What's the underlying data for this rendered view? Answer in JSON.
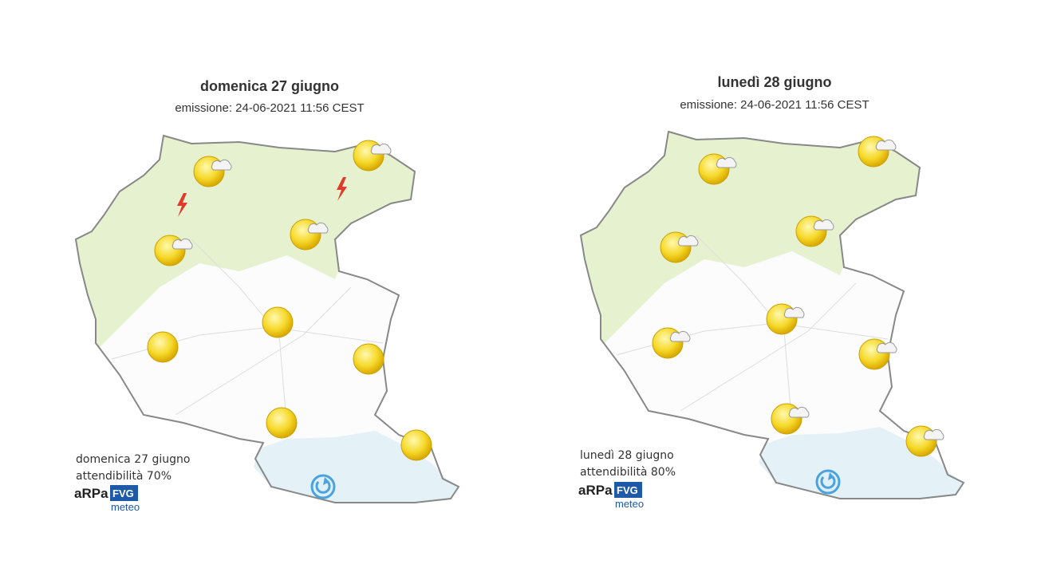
{
  "maps": [
    {
      "title": "domenica 27 giugno",
      "issued": "emissione: 24-06-2021 11:56 CEST",
      "footer_date": "domenica 27 giugno",
      "reliability": "attendibilità 70%",
      "logo": {
        "arpa": "aRPa",
        "fvg": "FVG",
        "meteo": "meteo"
      }
    },
    {
      "title": "lunedì 28 giugno",
      "issued": "emissione: 24-06-2021 11:56 CEST",
      "footer_date": "lunedì 28 giugno",
      "reliability": "attendibilità 80%",
      "logo": {
        "arpa": "aRPa",
        "fvg": "FVG",
        "meteo": "meteo"
      }
    }
  ]
}
